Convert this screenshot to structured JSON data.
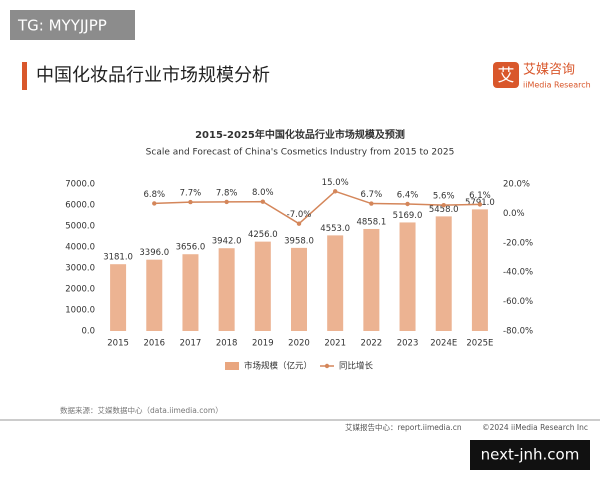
{
  "watermark_top": "TG: MYYJJPP",
  "header": {
    "title": "中国化妆品行业市场规模分析",
    "logo_mark": "艾",
    "logo_name": "艾媒咨询",
    "logo_sub": "iiMedia Research"
  },
  "chart_data": {
    "type": "bar",
    "title": "2015-2025年中国化妆品行业市场规模及预测",
    "subtitle": "Scale and Forecast of China's Cosmetics Industry from 2015 to 2025",
    "categories": [
      "2015",
      "2016",
      "2017",
      "2018",
      "2019",
      "2020",
      "2021",
      "2022",
      "2023",
      "2024E",
      "2025E"
    ],
    "series": [
      {
        "name": "市场规模（亿元）",
        "type": "bar",
        "color": "#e9a67f",
        "values": [
          3181,
          3396,
          3656,
          3942,
          4256,
          3958,
          4553,
          4858.1,
          5169,
          5458,
          5791
        ],
        "value_labels": [
          "3181.0",
          "3396.0",
          "3656.0",
          "3942.0",
          "4256.0",
          "3958.0",
          "4553.0",
          "4858.1",
          "5169.0",
          "5458.0",
          "5791.0"
        ]
      },
      {
        "name": "同比增长",
        "type": "line",
        "axis": "y2",
        "color": "#d4865a",
        "values": [
          null,
          6.8,
          7.7,
          7.8,
          8.0,
          -7.0,
          15.0,
          6.7,
          6.4,
          5.6,
          6.1
        ],
        "value_labels": [
          null,
          "6.8%",
          "7.7%",
          "7.8%",
          "8.0%",
          "-7.0%",
          "15.0%",
          "6.7%",
          "6.4%",
          "5.6%",
          "6.1%"
        ]
      }
    ],
    "ylim": [
      0,
      7000
    ],
    "yticks": [
      {
        "value": 0,
        "label": "0.0"
      },
      {
        "value": 1000,
        "label": "1000.0"
      },
      {
        "value": 2000,
        "label": "2000.0"
      },
      {
        "value": 3000,
        "label": "3000.0"
      },
      {
        "value": 4000,
        "label": "4000.0"
      },
      {
        "value": 5000,
        "label": "5000.0"
      },
      {
        "value": 6000,
        "label": "6000.0"
      },
      {
        "value": 7000,
        "label": "7000.0"
      }
    ],
    "y2lim": [
      -80,
      20
    ],
    "y2ticks": [
      {
        "value": -80,
        "label": "-80.0%"
      },
      {
        "value": -60,
        "label": "-60.0%"
      },
      {
        "value": -40,
        "label": "-40.0%"
      },
      {
        "value": -20,
        "label": "-20.0%"
      },
      {
        "value": 0,
        "label": "0.0%"
      },
      {
        "value": 20,
        "label": "20.0%"
      }
    ],
    "grid": false
  },
  "source": "数据来源：艾媒数据中心（data.iimedia.com）",
  "footer": {
    "left": "艾媒报告中心：report.iimedia.cn",
    "right": "©2024  iiMedia Research  Inc"
  },
  "watermark_bottom": "next-jnh.com"
}
